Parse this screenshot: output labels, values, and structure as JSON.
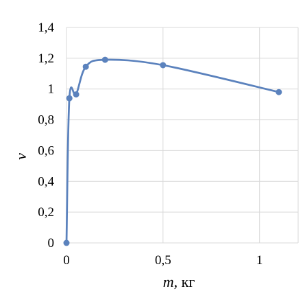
{
  "chart_data": {
    "type": "scatter",
    "title": "",
    "xlabel_var": "m",
    "xlabel_unit": ", кг",
    "ylabel": "ν",
    "xlim": [
      0,
      1.2
    ],
    "ylim": [
      0,
      1.4
    ],
    "x_ticks": [
      {
        "value": 0,
        "label": "0"
      },
      {
        "value": 0.5,
        "label": "0,5"
      },
      {
        "value": 1,
        "label": "1"
      }
    ],
    "y_ticks": [
      {
        "value": 0,
        "label": "0"
      },
      {
        "value": 0.2,
        "label": "0,2"
      },
      {
        "value": 0.4,
        "label": "0,4"
      },
      {
        "value": 0.6,
        "label": "0,6"
      },
      {
        "value": 0.8,
        "label": "0,8"
      },
      {
        "value": 1.0,
        "label": "1"
      },
      {
        "value": 1.2,
        "label": "1,2"
      },
      {
        "value": 1.4,
        "label": "1,4"
      }
    ],
    "grid": true,
    "series": [
      {
        "color": "#5b82bd",
        "smooth": true,
        "points": [
          {
            "x": 0.0,
            "y": 0.0
          },
          {
            "x": 0.015,
            "y": 0.94
          },
          {
            "x": 0.05,
            "y": 0.965
          },
          {
            "x": 0.1,
            "y": 1.145
          },
          {
            "x": 0.2,
            "y": 1.19
          },
          {
            "x": 0.5,
            "y": 1.155
          },
          {
            "x": 1.1,
            "y": 0.98
          }
        ]
      }
    ]
  }
}
